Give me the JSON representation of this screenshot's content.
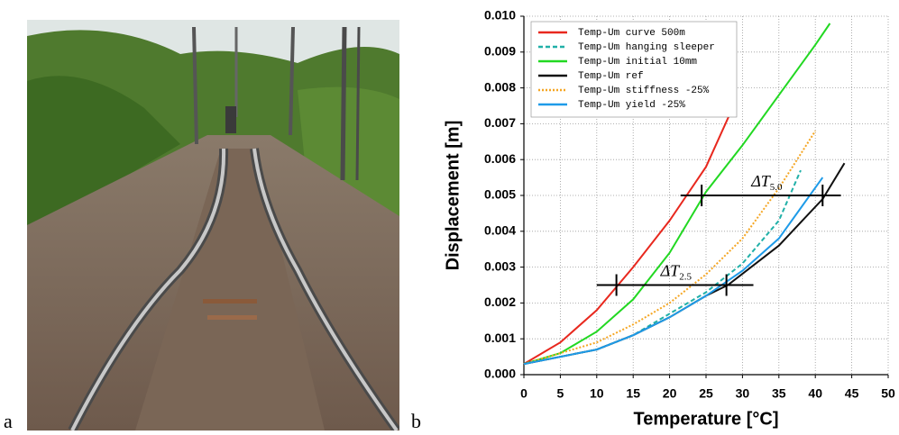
{
  "panel_labels": [
    "a",
    "b"
  ],
  "chart_data": {
    "type": "line",
    "xlabel": "Temperature [°C]",
    "ylabel": "Displacement [m]",
    "xlim": [
      0,
      50
    ],
    "ylim": [
      0,
      0.01
    ],
    "xticks": [
      0,
      5,
      10,
      15,
      20,
      25,
      30,
      35,
      40,
      45,
      50
    ],
    "yticks": [
      {
        "value": 0,
        "label": "0.000"
      },
      {
        "value": 0.001,
        "label": "0.001"
      },
      {
        "value": 0.002,
        "label": "0.002"
      },
      {
        "value": 0.003,
        "label": "0.003"
      },
      {
        "value": 0.004,
        "label": "0.004"
      },
      {
        "value": 0.005,
        "label": "0.005"
      },
      {
        "value": 0.006,
        "label": "0.006"
      },
      {
        "value": 0.007,
        "label": "0.007"
      },
      {
        "value": 0.008,
        "label": "0.008"
      },
      {
        "value": 0.009,
        "label": "0.009"
      },
      {
        "value": 0.01,
        "label": "0.010"
      }
    ],
    "grid": true,
    "legend": "upper left",
    "series": [
      {
        "name": "Temp-Um curve 500m",
        "color": "#e8281e",
        "style": "solid",
        "x": [
          0,
          5,
          10,
          15,
          20,
          25,
          29
        ],
        "values": [
          0.0003,
          0.0009,
          0.0018,
          0.003,
          0.0043,
          0.0058,
          0.0076
        ]
      },
      {
        "name": "Temp-Um hanging sleeper",
        "color": "#20b0a8",
        "style": "dashed",
        "x": [
          0,
          10,
          15,
          20,
          25,
          30,
          35,
          38
        ],
        "values": [
          0.0003,
          0.0007,
          0.0011,
          0.0017,
          0.0023,
          0.0031,
          0.0043,
          0.0057
        ]
      },
      {
        "name": "Temp-Um initial 10mm",
        "color": "#22d822",
        "style": "solid",
        "x": [
          0,
          5,
          10,
          15,
          20,
          25,
          30,
          35,
          40,
          42
        ],
        "values": [
          0.0003,
          0.0006,
          0.0012,
          0.0021,
          0.0034,
          0.0051,
          0.0064,
          0.0078,
          0.0092,
          0.0098
        ]
      },
      {
        "name": "Temp-Um ref",
        "color": "#111111",
        "style": "solid",
        "x": [
          0,
          10,
          15,
          20,
          25,
          28,
          35,
          41,
          44
        ],
        "values": [
          0.0003,
          0.0007,
          0.0011,
          0.0016,
          0.0022,
          0.0025,
          0.0036,
          0.0049,
          0.0059
        ]
      },
      {
        "name": "Temp-Um stiffness -25%",
        "color": "#f5a623",
        "style": "dotted",
        "x": [
          0,
          10,
          15,
          20,
          25,
          30,
          35,
          40
        ],
        "values": [
          0.0003,
          0.0009,
          0.0014,
          0.002,
          0.0028,
          0.0038,
          0.0052,
          0.0068
        ]
      },
      {
        "name": "Temp-Um yield -25%",
        "color": "#1e9be8",
        "style": "solid",
        "x": [
          0,
          10,
          15,
          20,
          25,
          30,
          35,
          41
        ],
        "values": [
          0.0003,
          0.0007,
          0.0011,
          0.0016,
          0.0022,
          0.0029,
          0.0038,
          0.0055
        ]
      }
    ],
    "annotations": [
      {
        "text": "ΔT",
        "subscript": "5.0",
        "y": 0.005,
        "x_range": [
          21.5,
          43.5
        ],
        "markers": [
          24.4,
          41
        ]
      },
      {
        "text": "ΔT",
        "subscript": "2.5",
        "y": 0.0025,
        "x_range": [
          10,
          31.5
        ],
        "markers": [
          12.7,
          27.8
        ]
      }
    ]
  }
}
